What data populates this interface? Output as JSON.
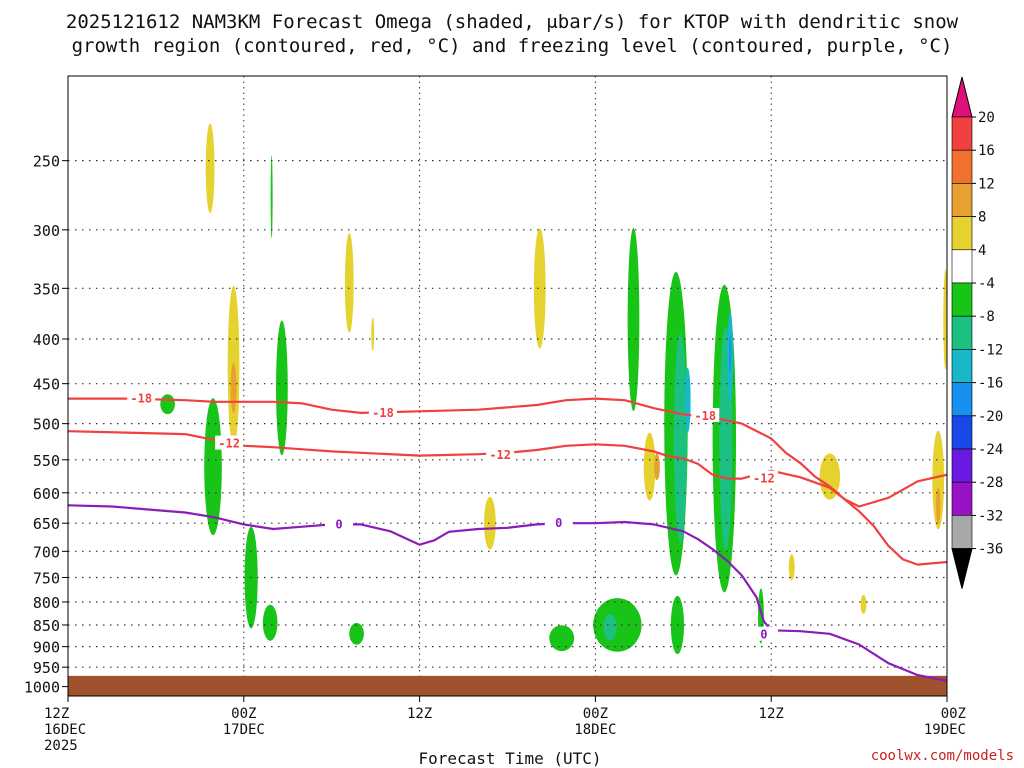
{
  "chart_data": {
    "type": "heatmap",
    "title_line1": "2025121612 NAM3KM Forecast Omega (shaded, μbar/s) for KTOP with dendritic snow",
    "title_line2": "growth region (contoured, red, °C) and freezing level (contoured, purple, °C)",
    "xlabel": "Forecast Time (UTC)",
    "ylabel": "",
    "credit": "coolwx.com/models",
    "x_range_hours": [
      0,
      60
    ],
    "x_ticks": [
      {
        "hour": 0,
        "time": "12Z",
        "date": "16DEC",
        "year": "2025"
      },
      {
        "hour": 12,
        "time": "00Z",
        "date": "17DEC",
        "year": ""
      },
      {
        "hour": 24,
        "time": "12Z",
        "date": "",
        "year": ""
      },
      {
        "hour": 36,
        "time": "00Z",
        "date": "18DEC",
        "year": ""
      },
      {
        "hour": 48,
        "time": "12Z",
        "date": "",
        "year": ""
      },
      {
        "hour": 60,
        "time": "00Z",
        "date": "19DEC",
        "year": ""
      }
    ],
    "y_axis": "pressure (mb), inverted",
    "y_range_mb": [
      1025,
      200
    ],
    "y_ticks": [
      250,
      300,
      350,
      400,
      450,
      500,
      550,
      600,
      650,
      700,
      750,
      800,
      850,
      900,
      950,
      1000
    ],
    "colorbar": {
      "labels": [
        "20",
        "16",
        "12",
        "8",
        "4",
        "-4",
        "-8",
        "-12",
        "-16",
        "-20",
        "-24",
        "-28",
        "-32",
        "-36"
      ],
      "colors": [
        "#e0107a",
        "#f04040",
        "#f07030",
        "#e8a030",
        "#e6d22e",
        "#ffffff",
        "#18c418",
        "#1cc080",
        "#18b8c8",
        "#1890f0",
        "#1848e8",
        "#6a1ae0",
        "#9a12c8",
        "#a8a8a8",
        "#000000"
      ]
    },
    "terrain_color": "#a0522d",
    "series": [
      {
        "name": "-18 C isotherm",
        "color": "#f04040",
        "label": "-18",
        "points": [
          [
            0,
            468
          ],
          [
            4,
            468
          ],
          [
            8,
            470
          ],
          [
            10,
            472
          ],
          [
            12,
            472
          ],
          [
            14,
            472
          ],
          [
            16,
            474
          ],
          [
            18,
            482
          ],
          [
            20,
            486
          ],
          [
            24,
            484
          ],
          [
            28,
            482
          ],
          [
            32,
            476
          ],
          [
            34,
            470
          ],
          [
            36,
            468
          ],
          [
            38,
            470
          ],
          [
            40,
            480
          ],
          [
            42,
            488
          ],
          [
            44,
            492
          ],
          [
            46,
            500
          ],
          [
            48,
            520
          ],
          [
            49,
            540
          ],
          [
            50,
            555
          ],
          [
            51,
            575
          ],
          [
            52,
            590
          ],
          [
            53,
            610
          ],
          [
            54,
            630
          ],
          [
            55,
            655
          ],
          [
            56,
            690
          ],
          [
            57,
            715
          ],
          [
            58,
            725
          ],
          [
            60,
            720
          ]
        ],
        "labels": [
          {
            "h": 5,
            "p": 468
          },
          {
            "h": 21.5,
            "p": 486
          },
          {
            "h": 43.5,
            "p": 490
          }
        ]
      },
      {
        "name": "-12 C isotherm",
        "color": "#f04040",
        "label": "-12",
        "points": [
          [
            0,
            510
          ],
          [
            4,
            512
          ],
          [
            8,
            514
          ],
          [
            10,
            522
          ],
          [
            11,
            528
          ],
          [
            12,
            530
          ],
          [
            14,
            532
          ],
          [
            16,
            535
          ],
          [
            18,
            538
          ],
          [
            20,
            540
          ],
          [
            24,
            544
          ],
          [
            28,
            542
          ],
          [
            30,
            540
          ],
          [
            32,
            536
          ],
          [
            34,
            530
          ],
          [
            36,
            528
          ],
          [
            38,
            530
          ],
          [
            40,
            538
          ],
          [
            41,
            545
          ],
          [
            42,
            548
          ],
          [
            43,
            556
          ],
          [
            44,
            572
          ],
          [
            45,
            578
          ],
          [
            46,
            578
          ],
          [
            47,
            572
          ],
          [
            48,
            566
          ],
          [
            50,
            576
          ],
          [
            52,
            592
          ],
          [
            53,
            610
          ],
          [
            54,
            622
          ],
          [
            56,
            608
          ],
          [
            58,
            582
          ],
          [
            60,
            572
          ]
        ],
        "labels": [
          {
            "h": 11,
            "p": 527
          },
          {
            "h": 29.5,
            "p": 543
          },
          {
            "h": 47.5,
            "p": 578
          }
        ]
      },
      {
        "name": "0 C freezing level",
        "color": "#8a1cb8",
        "label": "0",
        "points": [
          [
            0,
            620
          ],
          [
            3,
            622
          ],
          [
            6,
            628
          ],
          [
            8,
            632
          ],
          [
            10,
            640
          ],
          [
            12,
            652
          ],
          [
            14,
            660
          ],
          [
            16,
            656
          ],
          [
            18,
            652
          ],
          [
            20,
            652
          ],
          [
            22,
            664
          ],
          [
            24,
            688
          ],
          [
            25,
            680
          ],
          [
            26,
            665
          ],
          [
            28,
            660
          ],
          [
            30,
            658
          ],
          [
            32,
            652
          ],
          [
            34,
            650
          ],
          [
            36,
            650
          ],
          [
            38,
            648
          ],
          [
            40,
            652
          ],
          [
            42,
            664
          ],
          [
            43,
            678
          ],
          [
            44,
            696
          ],
          [
            45,
            718
          ],
          [
            46,
            746
          ],
          [
            47,
            790
          ],
          [
            47.5,
            842
          ],
          [
            48,
            862
          ],
          [
            50,
            864
          ],
          [
            52,
            870
          ],
          [
            54,
            895
          ],
          [
            56,
            940
          ],
          [
            58,
            970
          ],
          [
            60,
            985
          ]
        ],
        "labels": [
          {
            "h": 18.5,
            "p": 652
          },
          {
            "h": 33.5,
            "p": 650
          },
          {
            "h": 47.5,
            "p": 872
          }
        ]
      }
    ],
    "shaded_regions": [
      {
        "category": "4 to 8",
        "h": 9.7,
        "p": 255,
        "dh": 0.6,
        "dp": 60
      },
      {
        "category": "-4 to -8",
        "h": 13.9,
        "p": 275,
        "dh": 0.12,
        "dp": 60
      },
      {
        "category": "4 to 8",
        "h": 11.3,
        "p": 430,
        "dh": 0.8,
        "dp": 180
      },
      {
        "category": "-4 to -8",
        "h": 14.6,
        "p": 455,
        "dh": 0.8,
        "dp": 160
      },
      {
        "category": "4 to 8",
        "h": 19.2,
        "p": 345,
        "dh": 0.6,
        "dp": 90
      },
      {
        "category": "4 to 8",
        "h": 20.8,
        "p": 395,
        "dh": 0.2,
        "dp": 35
      },
      {
        "category": "-4 to -8",
        "h": 9.9,
        "p": 560,
        "dh": 1.2,
        "dp": 200
      },
      {
        "category": "-4 to -8",
        "h": 6.8,
        "p": 475,
        "dh": 1.0,
        "dp": 25
      },
      {
        "category": "-4 to -8",
        "h": 12.5,
        "p": 750,
        "dh": 0.9,
        "dp": 200
      },
      {
        "category": "-4 to -8",
        "h": 13.8,
        "p": 845,
        "dh": 1.0,
        "dp": 80
      },
      {
        "category": "4 to 8",
        "h": 28.8,
        "p": 650,
        "dh": 0.8,
        "dp": 90
      },
      {
        "category": "4 to 8",
        "h": 32.2,
        "p": 350,
        "dh": 0.8,
        "dp": 110
      },
      {
        "category": "-4 to -8",
        "h": 38.6,
        "p": 380,
        "dh": 0.8,
        "dp": 180
      },
      {
        "category": "4 to 8",
        "h": 39.7,
        "p": 560,
        "dh": 0.8,
        "dp": 100
      },
      {
        "category": "-4 to -8",
        "h": 41.5,
        "p": 500,
        "dh": 1.6,
        "dp": 380
      },
      {
        "category": "-8 to -12",
        "h": 41.8,
        "p": 520,
        "dh": 0.9,
        "dp": 280
      },
      {
        "category": "-12 to -16",
        "h": 42.3,
        "p": 470,
        "dh": 0.4,
        "dp": 80
      },
      {
        "category": "-4 to -8",
        "h": 44.8,
        "p": 520,
        "dh": 1.6,
        "dp": 400
      },
      {
        "category": "-8 to -12",
        "h": 44.9,
        "p": 520,
        "dh": 0.9,
        "dp": 300
      },
      {
        "category": "-12 to -16",
        "h": 45.2,
        "p": 420,
        "dh": 0.4,
        "dp": 100
      },
      {
        "category": "-16 to -20",
        "h": 45.2,
        "p": 415,
        "dh": 0.15,
        "dp": 40
      },
      {
        "category": "-4 to -8",
        "h": 37.5,
        "p": 850,
        "dh": 3.3,
        "dp": 120
      },
      {
        "category": "-8 to -12",
        "h": 37.0,
        "p": 855,
        "dh": 0.9,
        "dp": 60
      },
      {
        "category": "-4 to -8",
        "h": 33.7,
        "p": 880,
        "dh": 1.7,
        "dp": 60
      },
      {
        "category": "-4 to -8",
        "h": 41.6,
        "p": 850,
        "dh": 0.9,
        "dp": 130
      },
      {
        "category": "-4 to -8",
        "h": 47.3,
        "p": 830,
        "dh": 0.4,
        "dp": 120
      },
      {
        "category": "-4 to -8",
        "h": 19.7,
        "p": 870,
        "dh": 1.0,
        "dp": 50
      },
      {
        "category": "4 to 8",
        "h": 52.0,
        "p": 575,
        "dh": 1.4,
        "dp": 70
      },
      {
        "category": "4 to 8",
        "h": 49.4,
        "p": 730,
        "dh": 0.4,
        "dp": 50
      },
      {
        "category": "4 to 8",
        "h": 54.3,
        "p": 805,
        "dh": 0.4,
        "dp": 40
      },
      {
        "category": "4 to 8",
        "h": 59.4,
        "p": 580,
        "dh": 0.8,
        "dp": 150
      },
      {
        "category": "4 to 8",
        "h": 59.9,
        "p": 380,
        "dh": 0.3,
        "dp": 100
      },
      {
        "category": "8 to 12",
        "h": 11.3,
        "p": 455,
        "dh": 0.4,
        "dp": 60
      },
      {
        "category": "8 to 12",
        "h": 40.2,
        "p": 560,
        "dh": 0.4,
        "dp": 40
      },
      {
        "category": "8 to 12",
        "h": 59.4,
        "p": 620,
        "dh": 0.3,
        "dp": 60
      }
    ],
    "legend": "colorbar right"
  }
}
